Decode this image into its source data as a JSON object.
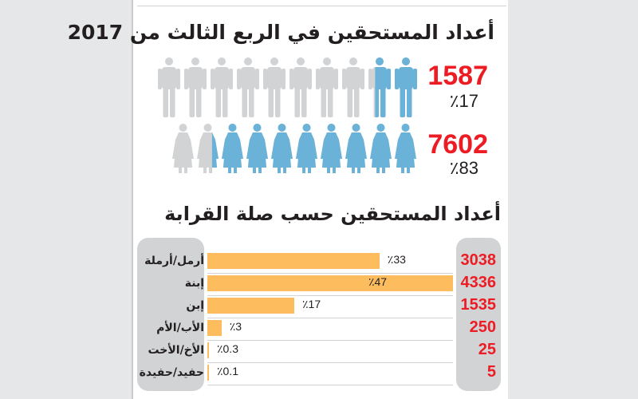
{
  "title_main": "أعداد المستحقين في الربع الثالث من 2017",
  "gender": [
    {
      "name": "male",
      "count": "1587",
      "percent_label": "٪17",
      "percent": 17,
      "icon": "man-icon"
    },
    {
      "name": "female",
      "count": "7602",
      "percent_label": "٪83",
      "percent": 83,
      "icon": "woman-icon"
    }
  ],
  "title_relation": "أعداد المستحقين حسب صلة القرابة",
  "colors": {
    "filled": "#6ab2d8",
    "empty": "#d1d3d4",
    "bar": "#fdbd5e",
    "number": "#ed1c24"
  },
  "chart_data": {
    "type": "bar",
    "title": "أعداد المستحقين حسب صلة القرابة",
    "categories": [
      "أرمل/أرملة",
      "إبنة",
      "إبن",
      "الأب/الأم",
      "الأخ/الأخت",
      "حفيد/حفيدة"
    ],
    "values": [
      3038,
      4336,
      1535,
      250,
      25,
      5
    ],
    "value_labels": [
      "3038",
      "4336",
      "1535",
      "250",
      "25",
      "5"
    ],
    "percents": [
      33,
      47,
      17,
      3,
      0.3,
      0.1
    ],
    "percent_labels": [
      "٪33",
      "٪47",
      "٪17",
      "٪3",
      "٪0.3",
      "٪0.1"
    ]
  }
}
